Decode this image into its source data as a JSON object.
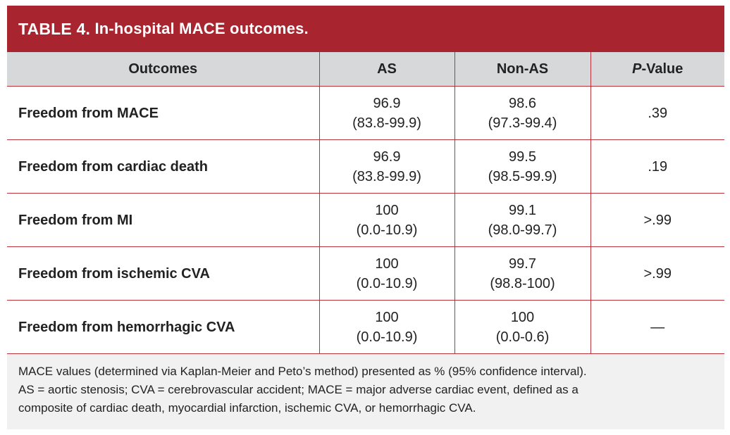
{
  "title": {
    "prefix": "TABLE 4.",
    "text": "In-hospital MACE outcomes."
  },
  "table": {
    "headers": [
      "Outcomes",
      "AS",
      "Non-AS",
      "-Value"
    ],
    "header_p_italic": "P",
    "rows": [
      {
        "outcome": "Freedom from MACE",
        "as_value": "96.9",
        "as_ci": "(83.8-99.9)",
        "nonas_value": "98.6",
        "nonas_ci": "(97.3-99.4)",
        "p_value": ".39"
      },
      {
        "outcome": "Freedom from cardiac death",
        "as_value": "96.9",
        "as_ci": "(83.8-99.9)",
        "nonas_value": "99.5",
        "nonas_ci": "(98.5-99.9)",
        "p_value": ".19"
      },
      {
        "outcome": "Freedom from MI",
        "as_value": "100",
        "as_ci": "(0.0-10.9)",
        "nonas_value": "99.1",
        "nonas_ci": "(98.0-99.7)",
        "p_value": ">.99"
      },
      {
        "outcome": "Freedom from ischemic CVA",
        "as_value": "100",
        "as_ci": "(0.0-10.9)",
        "nonas_value": "99.7",
        "nonas_ci": "(98.8-100)",
        "p_value": ">.99"
      },
      {
        "outcome": "Freedom from hemorrhagic CVA",
        "as_value": "100",
        "as_ci": "(0.0-10.9)",
        "nonas_value": "100",
        "nonas_ci": "(0.0-0.6)",
        "p_value": "—"
      }
    ]
  },
  "footnote": {
    "line1": "MACE values (determined via Kaplan-Meier and Peto’s method) presented as % (95% confidence interval).",
    "line2": "AS = aortic stenosis; CVA = cerebrovascular accident; MACE = major adverse cardiac event, defined as a",
    "line3": "composite of cardiac death, myocardial infarction, ischemic CVA, or hemorrhagic CVA."
  },
  "colors": {
    "title_bar": "#a8252f",
    "header_bg": "#d7d8da",
    "rule": "#b9323c",
    "panel_bg": "#f1f1f2"
  }
}
